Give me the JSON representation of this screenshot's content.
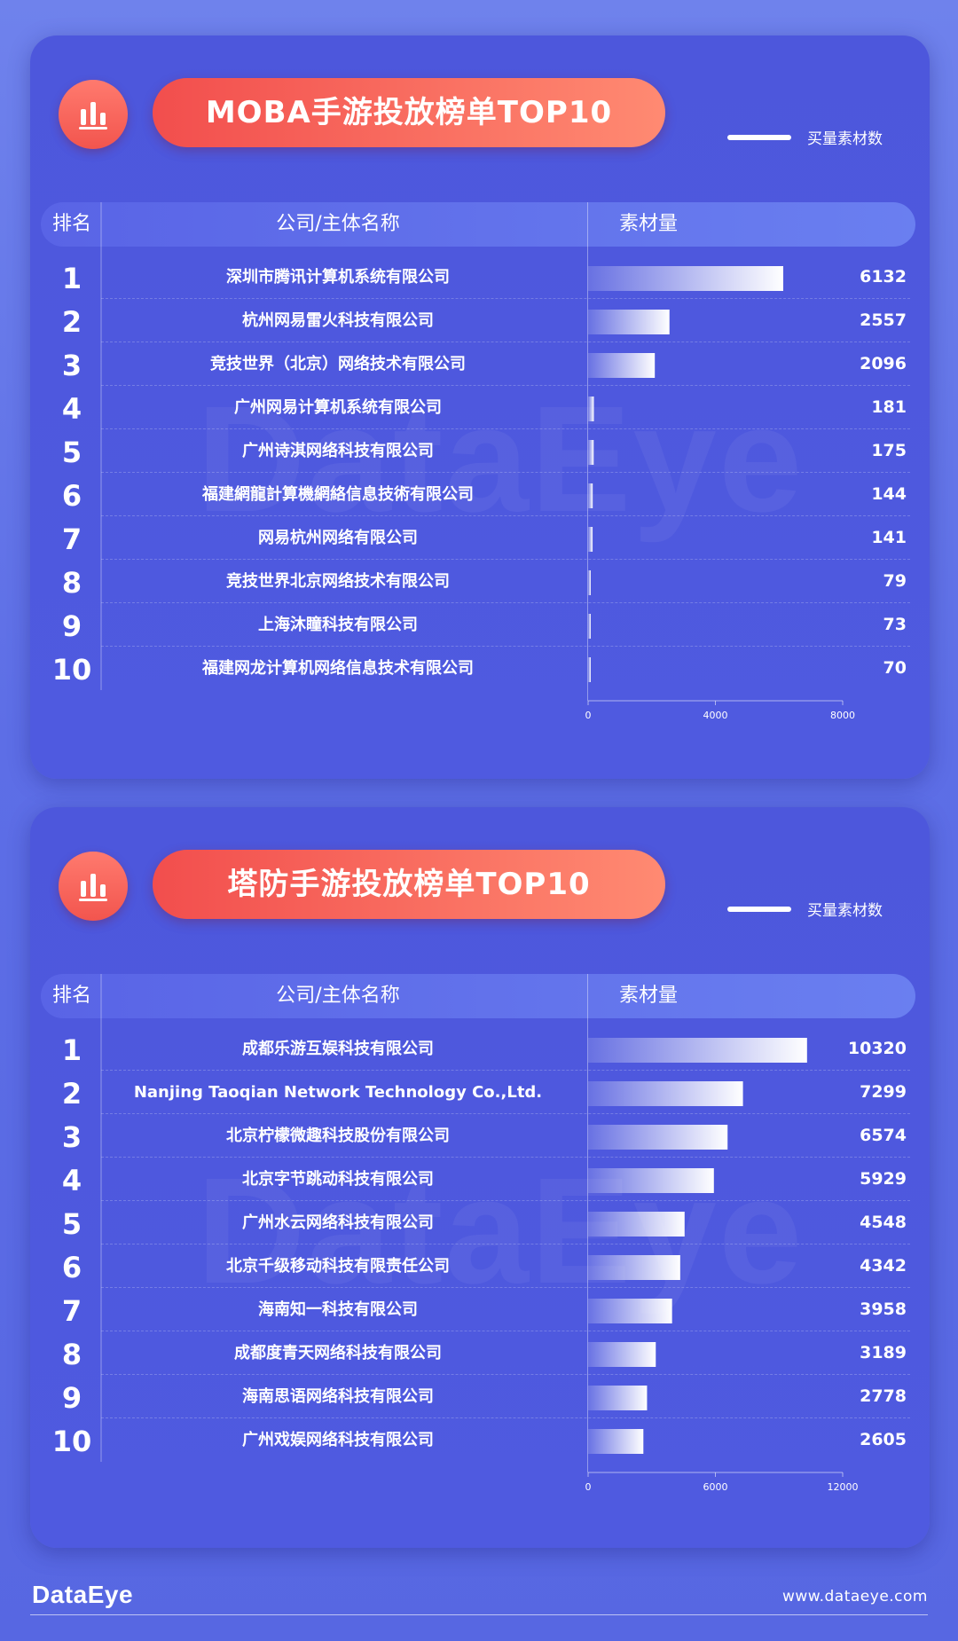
{
  "footer": {
    "logo": "DataEye",
    "url": "www.dataeye.com"
  },
  "icons": {
    "panel_icon": "bar-chart-icon"
  },
  "colors": {
    "accent_pill_start": "#f24e4d",
    "accent_pill_end": "#ff8a72",
    "panel": "#4f5ae0",
    "bar": "#ffffff"
  },
  "chart_data": [
    {
      "type": "bar",
      "orientation": "horizontal",
      "title": "MOBA手游投放榜单TOP10",
      "legend": "买量素材数",
      "headers": {
        "rank": "排名",
        "company": "公司/主体名称",
        "amount": "素材量"
      },
      "ranks": [
        "1",
        "2",
        "3",
        "4",
        "5",
        "6",
        "7",
        "8",
        "9",
        "10"
      ],
      "categories": [
        "深圳市腾讯计算机系统有限公司",
        "杭州网易雷火科技有限公司",
        "竞技世界（北京）网络技术有限公司",
        "广州网易计算机系统有限公司",
        "广州诗淇网络科技有限公司",
        "福建網龍計算機網絡信息技術有限公司",
        "网易杭州网络有限公司",
        "竞技世界北京网络技术有限公司",
        "上海沐瞳科技有限公司",
        "福建网龙计算机网络信息技术有限公司"
      ],
      "values": [
        6132,
        2557,
        2096,
        181,
        175,
        144,
        141,
        79,
        73,
        70
      ],
      "xlim": [
        0,
        8000
      ],
      "ticks": [
        0,
        4000,
        8000
      ]
    },
    {
      "type": "bar",
      "orientation": "horizontal",
      "title": "塔防手游投放榜单TOP10",
      "legend": "买量素材数",
      "headers": {
        "rank": "排名",
        "company": "公司/主体名称",
        "amount": "素材量"
      },
      "ranks": [
        "1",
        "2",
        "3",
        "4",
        "5",
        "6",
        "7",
        "8",
        "9",
        "10"
      ],
      "categories": [
        "成都乐游互娱科技有限公司",
        "Nanjing Taoqian Network Technology Co.,Ltd.",
        "北京柠檬微趣科技股份有限公司",
        "北京字节跳动科技有限公司",
        "广州水云网络科技有限公司",
        "北京千级移动科技有限责任公司",
        "海南知一科技有限公司",
        "成都度青天网络科技有限公司",
        "海南思语网络科技有限公司",
        "广州戏娱网络科技有限公司"
      ],
      "values": [
        10320,
        7299,
        6574,
        5929,
        4548,
        4342,
        3958,
        3189,
        2778,
        2605
      ],
      "xlim": [
        0,
        12000
      ],
      "ticks": [
        0,
        6000,
        12000
      ]
    }
  ]
}
